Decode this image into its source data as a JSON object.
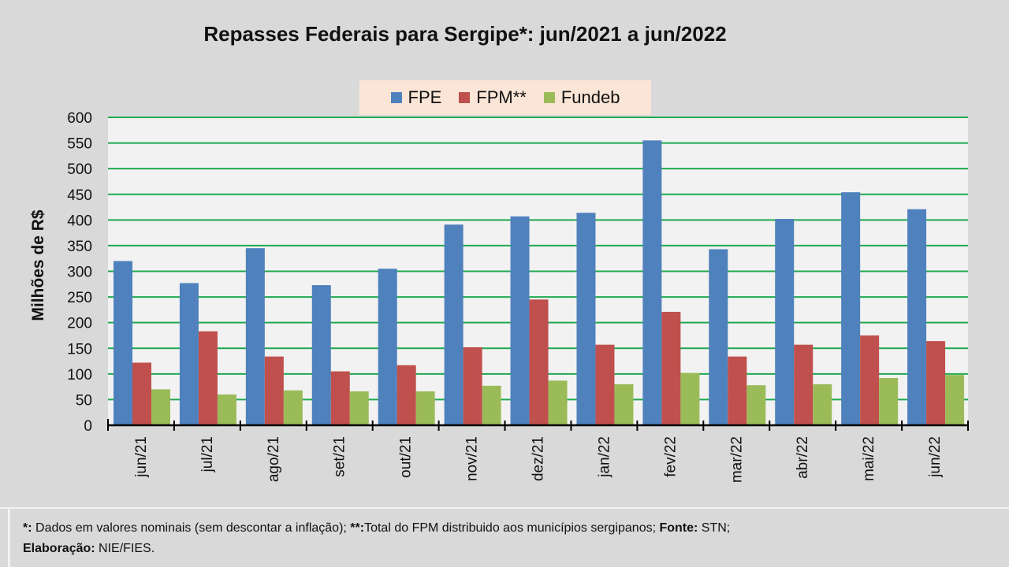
{
  "chart_data": {
    "type": "bar",
    "title": "Repasses Federais para Sergipe*: jun/2021 a jun/2022",
    "xlabel": "",
    "ylabel": "Milhões de R$",
    "ylim": [
      0,
      600
    ],
    "yticks": [
      0,
      50,
      100,
      150,
      200,
      250,
      300,
      350,
      400,
      450,
      500,
      550,
      600
    ],
    "grid": true,
    "legend_position": "top-center",
    "categories": [
      "jun/21",
      "jul/21",
      "ago/21",
      "set/21",
      "out/21",
      "nov/21",
      "dez/21",
      "jan/22",
      "fev/22",
      "mar/22",
      "abr/22",
      "mai/22",
      "jun/22"
    ],
    "series": [
      {
        "name": "FPE",
        "color": "#4f81bd",
        "values": [
          320,
          277,
          345,
          273,
          305,
          391,
          407,
          414,
          555,
          343,
          402,
          454,
          421
        ]
      },
      {
        "name": "FPM**",
        "color": "#c0504d",
        "values": [
          122,
          183,
          134,
          105,
          117,
          152,
          245,
          157,
          221,
          134,
          157,
          175,
          164
        ]
      },
      {
        "name": "Fundeb",
        "color": "#9bbb59",
        "values": [
          70,
          60,
          68,
          66,
          66,
          77,
          87,
          80,
          102,
          78,
          80,
          92,
          98
        ]
      }
    ]
  },
  "footer": {
    "line1_b1": "*:",
    "line1_t1": " Dados em valores nominais (sem descontar a inflação); ",
    "line1_b2": "**:",
    "line1_t2": "Total  do FPM distribuido aos municípios sergipanos; ",
    "line1_b3": "Fonte:",
    "line1_t3": " STN;",
    "line2_b1": "Elaboração:",
    "line2_t1": " NIE/FIES."
  }
}
